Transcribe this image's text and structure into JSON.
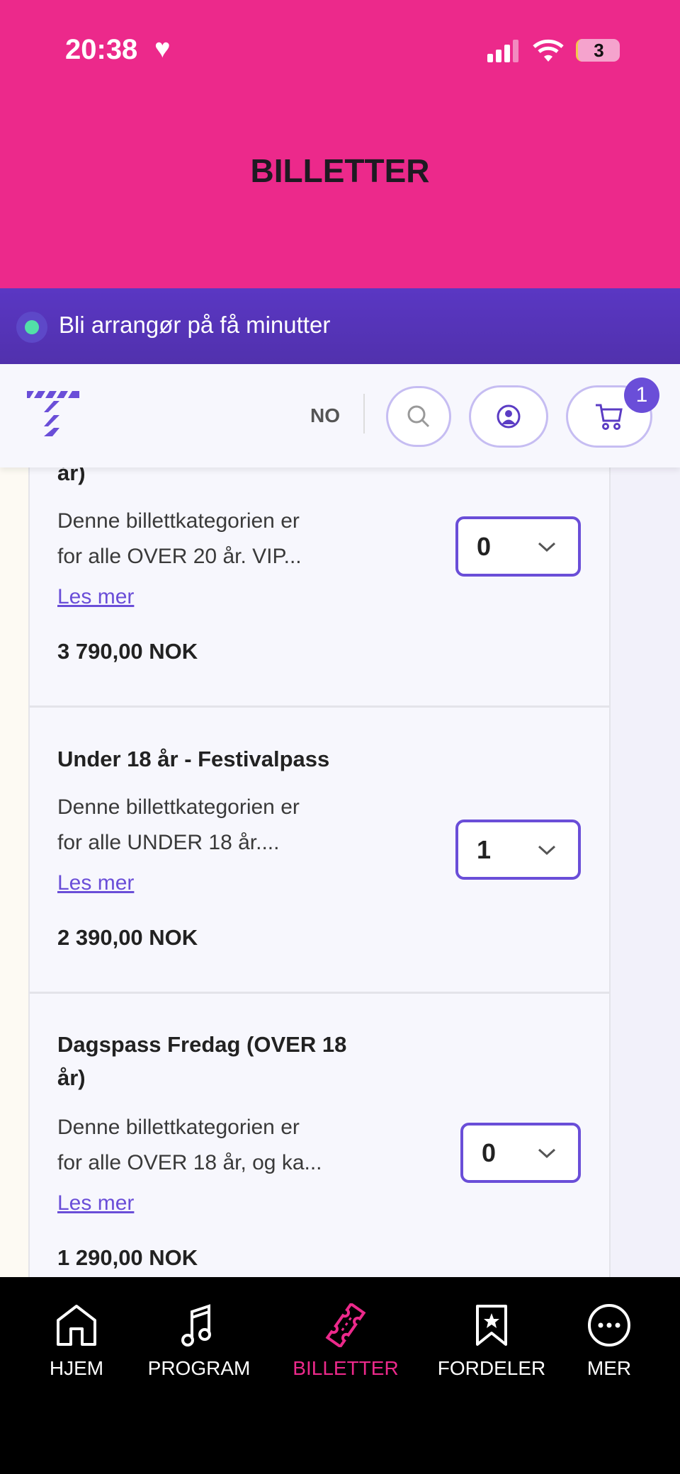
{
  "status_bar": {
    "time": "20:38",
    "battery": "3"
  },
  "header": {
    "title": "BILLETTER"
  },
  "banner": {
    "text": "Bli arrangør på få minutter"
  },
  "navbar": {
    "language": "NO",
    "cart_count": "1"
  },
  "tickets": [
    {
      "title_tail": "år)",
      "description": [
        "Denne billettkategorien er",
        "for alle OVER 20 år. VIP..."
      ],
      "read_more": "Les mer",
      "price": "3 790,00 NOK",
      "quantity": "0"
    },
    {
      "title": "Under 18 år - Festivalpass",
      "description": [
        "Denne billettkategorien er",
        "for alle UNDER 18 år...."
      ],
      "read_more": "Les mer",
      "price": "2 390,00 NOK",
      "quantity": "1"
    },
    {
      "title": [
        "Dagspass Fredag (OVER 18",
        "år)"
      ],
      "description": [
        "Denne billettkategorien er",
        "for alle OVER 18 år, og ka..."
      ],
      "read_more": "Les mer",
      "price": "1 290,00 NOK",
      "quantity": "0"
    }
  ],
  "bottom_nav": [
    {
      "label": "HJEM",
      "icon": "home-icon"
    },
    {
      "label": "PROGRAM",
      "icon": "music-note-icon"
    },
    {
      "label": "BILLETTER",
      "icon": "ticket-icon",
      "active": true
    },
    {
      "label": "FORDELER",
      "icon": "bookmark-star-icon"
    },
    {
      "label": "MER",
      "icon": "more-icon"
    }
  ],
  "colors": {
    "header": "#ec298b",
    "banner": "#5a37c3",
    "accent": "#6a4ed8",
    "active_nav": "#ec298b",
    "nav_bg": "#000000"
  }
}
